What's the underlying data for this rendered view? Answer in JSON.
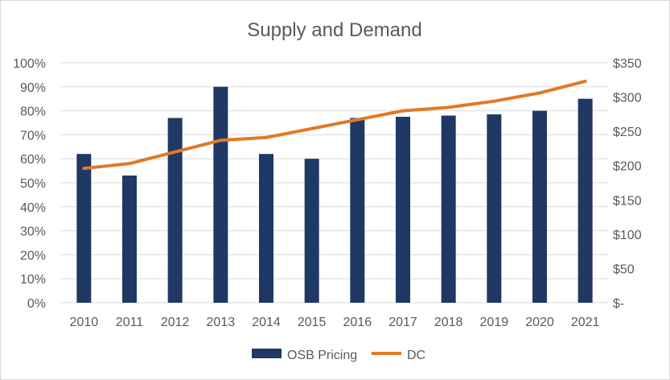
{
  "colors": {
    "bars": "#1f3864",
    "line": "#e07a27",
    "grid": "#d9d9d9",
    "text": "#595959"
  },
  "chart_data": {
    "type": "bar",
    "title": "Supply and Demand",
    "categories": [
      "2010",
      "2011",
      "2012",
      "2013",
      "2014",
      "2015",
      "2016",
      "2017",
      "2018",
      "2019",
      "2020",
      "2021"
    ],
    "series": [
      {
        "name": "OSB Pricing",
        "type": "bar",
        "axis": "left",
        "values": [
          0.62,
          0.53,
          0.77,
          0.9,
          0.62,
          0.6,
          0.77,
          0.775,
          0.78,
          0.785,
          0.8,
          0.85
        ]
      },
      {
        "name": "DC",
        "type": "line",
        "axis": "right",
        "values": [
          196,
          203,
          220,
          237,
          241,
          254,
          267,
          280,
          285,
          294,
          306,
          323
        ]
      }
    ],
    "y_left": {
      "min": 0,
      "max": 1,
      "ticks": [
        0,
        0.1,
        0.2,
        0.3,
        0.4,
        0.5,
        0.6,
        0.7,
        0.8,
        0.9,
        1.0
      ],
      "tick_labels": [
        "0%",
        "10%",
        "20%",
        "30%",
        "40%",
        "50%",
        "60%",
        "70%",
        "80%",
        "90%",
        "100%"
      ]
    },
    "y_right": {
      "min": 0,
      "max": 350,
      "ticks": [
        0,
        50,
        100,
        150,
        200,
        250,
        300,
        350
      ],
      "tick_labels": [
        "$-",
        "$50",
        "$100",
        "$150",
        "$200",
        "$250",
        "$300",
        "$350"
      ]
    },
    "grid": true,
    "legend_position": "bottom"
  }
}
